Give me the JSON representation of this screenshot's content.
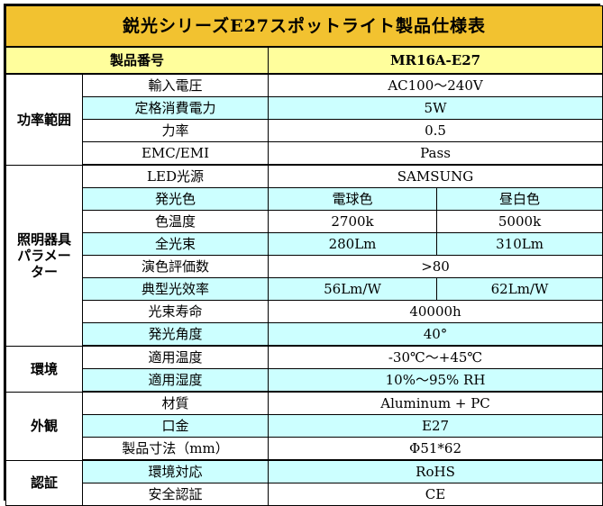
{
  "title": "鋭光シリーズE27スポットライト製品仕様表",
  "model": {
    "label": "製品番号",
    "value": "MR16A-E27"
  },
  "groups": {
    "power": "功率範囲",
    "lighting_line1": "照明器具",
    "lighting_line2": "パラメー",
    "lighting_line3": "ター",
    "environment": "環境",
    "appearance": "外観",
    "certification": "認証"
  },
  "rows": {
    "input_voltage": {
      "label": "輸入電圧",
      "value": "AC100～240V"
    },
    "rated_power": {
      "label": "定格消費電力",
      "value": "5W"
    },
    "power_factor": {
      "label": "力率",
      "value": "0.5"
    },
    "emc": {
      "label": "EMC/EMI",
      "value": "Pass"
    },
    "led_source": {
      "label": "LED光源",
      "value": "SAMSUNG"
    },
    "light_color": {
      "label": "発光色",
      "a": "電球色",
      "b": "昼白色"
    },
    "color_temp": {
      "label": "色温度",
      "a": "2700k",
      "b": "5000k"
    },
    "luminous_flux": {
      "label": "全光束",
      "a": "280Lm",
      "b": "310Lm"
    },
    "cri": {
      "label": "演色評価数",
      "value": ">80"
    },
    "efficacy": {
      "label": "典型光效率",
      "a": "56Lm/W",
      "b": "62Lm/W"
    },
    "lifespan": {
      "label": "光束寿命",
      "value": "40000h"
    },
    "beam_angle": {
      "label": "発光角度",
      "value": "40°"
    },
    "op_temp": {
      "label": "適用温度",
      "value": "-30℃～+45℃"
    },
    "op_humidity": {
      "label": "適用湿度",
      "value": "10%～95% RH"
    },
    "material": {
      "label": "材質",
      "value": "Aluminum + PC"
    },
    "base": {
      "label": "口金",
      "value": "E27"
    },
    "dimensions": {
      "label": "製品寸法（mm）",
      "value": "Φ51*62"
    },
    "env_compliance": {
      "label": "環境対応",
      "value": "RoHS"
    },
    "safety_cert": {
      "label": "安全認証",
      "value": "CE"
    }
  },
  "colors": {
    "title_bg": "#f2c230",
    "model_bg": "#fffe9c",
    "alt_row_bg": "#ccffff"
  }
}
